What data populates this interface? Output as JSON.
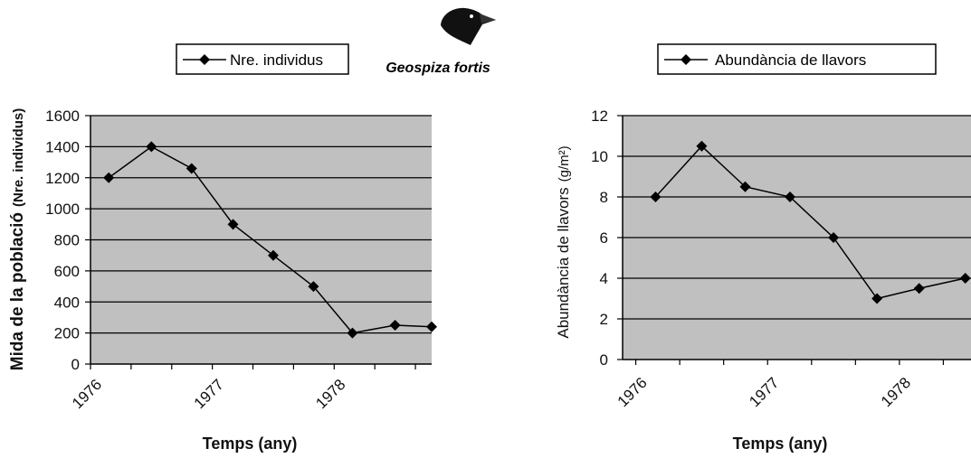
{
  "species_label": "Geospiza fortis",
  "species_icon": "finch-head-icon",
  "colors": {
    "plot_bg": "#c0c0c0",
    "grid": "#000000",
    "line": "#000000"
  },
  "chart_data": [
    {
      "type": "line",
      "legend": "Nre. individus",
      "legend_placement": "top-center",
      "ylabel": "Mida de la població (Nre. individus)",
      "ylabel_main": "Mida de la població",
      "ylabel_unit": "(Nre. individus)",
      "xlabel": "Temps (any)",
      "ylim": [
        0,
        1600
      ],
      "xlim": [
        1976,
        1978.8
      ],
      "yticks": [
        "0",
        "200",
        "400",
        "600",
        "800",
        "1000",
        "1200",
        "1400",
        "1600"
      ],
      "xtick_labels": [
        "1976",
        "1977",
        "1978"
      ],
      "xtick_values": [
        1976,
        1977,
        1978
      ],
      "grid": true,
      "series": [
        {
          "name": "Nre. individus",
          "x": [
            1976.15,
            1976.5,
            1976.83,
            1977.17,
            1977.5,
            1977.83,
            1978.15,
            1978.5,
            1978.8
          ],
          "values": [
            1200,
            1400,
            1260,
            900,
            700,
            500,
            200,
            250,
            240
          ]
        }
      ]
    },
    {
      "type": "line",
      "legend": "Abundància de llavors",
      "legend_placement": "top-center",
      "ylabel": "Abundància de llavors (g/m²)",
      "ylabel_main": "Abundància de llavors",
      "ylabel_unit": "(g/m²)",
      "xlabel": "Temps (any)",
      "ylim": [
        0,
        12
      ],
      "xlim": [
        1975.9,
        1978.55
      ],
      "yticks": [
        "0",
        "2",
        "4",
        "6",
        "8",
        "10",
        "12"
      ],
      "xtick_labels": [
        "1976",
        "1977",
        "1978"
      ],
      "xtick_values": [
        1976,
        1977,
        1978
      ],
      "grid": true,
      "series": [
        {
          "name": "Abundància de llavors",
          "x": [
            1976.15,
            1976.5,
            1976.83,
            1977.17,
            1977.5,
            1977.83,
            1978.15,
            1978.5
          ],
          "values": [
            8,
            10.5,
            8.5,
            8,
            6,
            3,
            3.5,
            4
          ]
        }
      ]
    }
  ]
}
